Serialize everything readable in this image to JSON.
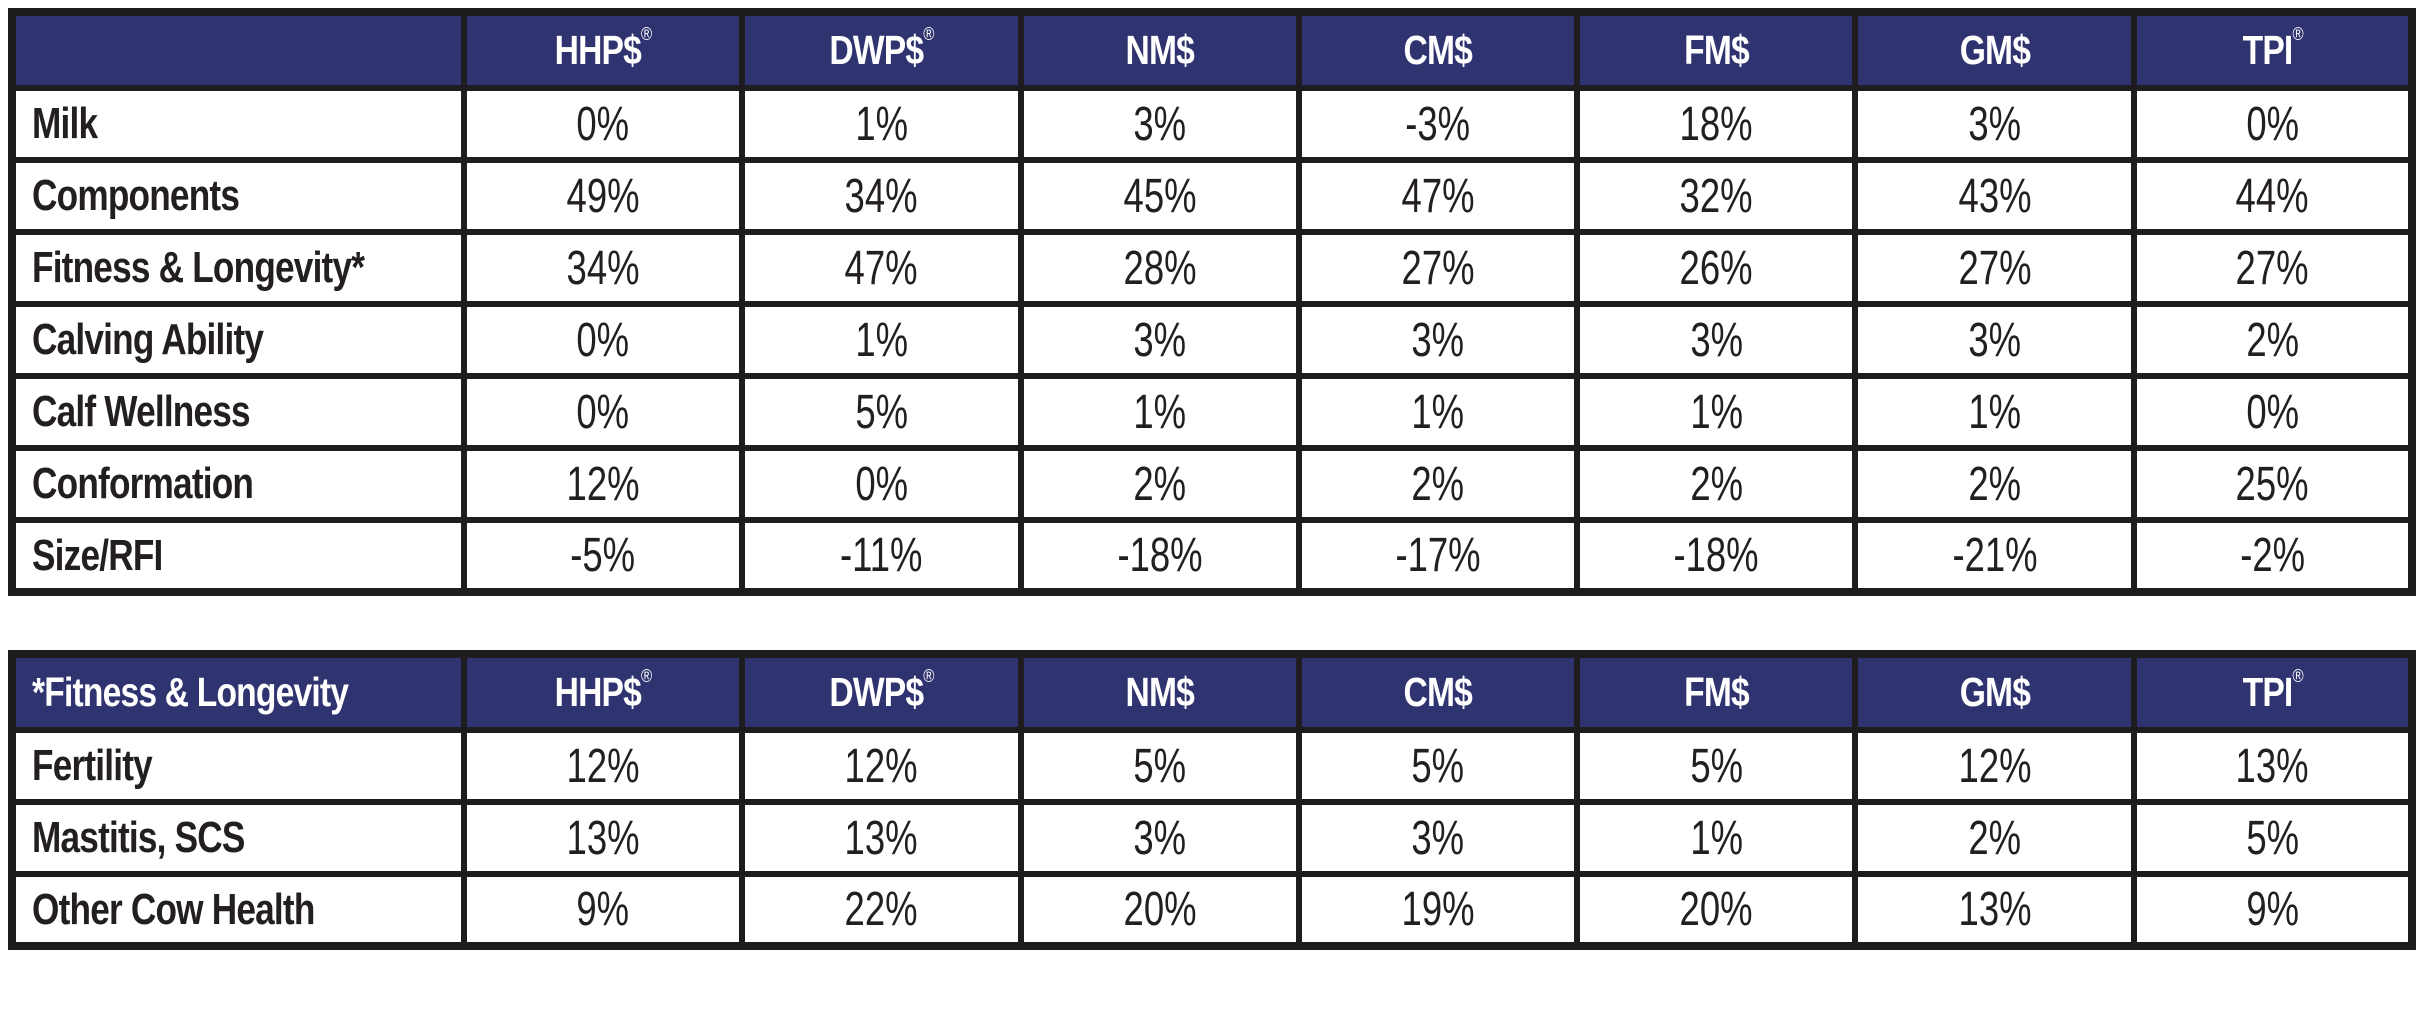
{
  "colors": {
    "header_bg": "#2f336f",
    "header_text": "#ffffff",
    "border": "#1e1c1e",
    "cell_text": "#231f20",
    "cell_bg": "#ffffff"
  },
  "columns": [
    {
      "label": "HHP$",
      "sup": "®"
    },
    {
      "label": "DWP$",
      "sup": "®"
    },
    {
      "label": "NM$",
      "sup": ""
    },
    {
      "label": "CM$",
      "sup": ""
    },
    {
      "label": "FM$",
      "sup": ""
    },
    {
      "label": "GM$",
      "sup": ""
    },
    {
      "label": "TPI",
      "sup": "®"
    }
  ],
  "table1": {
    "corner_label": "",
    "rows": [
      {
        "label": "Milk",
        "values": [
          "0%",
          "1%",
          "3%",
          "-3%",
          "18%",
          "3%",
          "0%"
        ]
      },
      {
        "label": "Components",
        "values": [
          "49%",
          "34%",
          "45%",
          "47%",
          "32%",
          "43%",
          "44%"
        ]
      },
      {
        "label": "Fitness & Longevity*",
        "values": [
          "34%",
          "47%",
          "28%",
          "27%",
          "26%",
          "27%",
          "27%"
        ]
      },
      {
        "label": "Calving Ability",
        "values": [
          "0%",
          "1%",
          "3%",
          "3%",
          "3%",
          "3%",
          "2%"
        ]
      },
      {
        "label": "Calf Wellness",
        "values": [
          "0%",
          "5%",
          "1%",
          "1%",
          "1%",
          "1%",
          "0%"
        ]
      },
      {
        "label": "Conformation",
        "values": [
          "12%",
          "0%",
          "2%",
          "2%",
          "2%",
          "2%",
          "25%"
        ]
      },
      {
        "label": "Size/RFI",
        "values": [
          "-5%",
          "-11%",
          "-18%",
          "-17%",
          "-18%",
          "-21%",
          "-2%"
        ]
      }
    ]
  },
  "table2": {
    "corner_label": "*Fitness & Longevity",
    "rows": [
      {
        "label": "Fertility",
        "values": [
          "12%",
          "12%",
          "5%",
          "5%",
          "5%",
          "12%",
          "13%"
        ]
      },
      {
        "label": "Mastitis, SCS",
        "values": [
          "13%",
          "13%",
          "3%",
          "3%",
          "1%",
          "2%",
          "5%"
        ]
      },
      {
        "label": "Other Cow Health",
        "values": [
          "9%",
          "22%",
          "20%",
          "19%",
          "20%",
          "13%",
          "9%"
        ]
      }
    ]
  },
  "chart_data": [
    {
      "type": "table",
      "columns": [
        "",
        "HHP$®",
        "DWP$®",
        "NM$",
        "CM$",
        "FM$",
        "GM$",
        "TPI®"
      ],
      "rows": [
        [
          "Milk",
          "0%",
          "1%",
          "3%",
          "-3%",
          "18%",
          "3%",
          "0%"
        ],
        [
          "Components",
          "49%",
          "34%",
          "45%",
          "47%",
          "32%",
          "43%",
          "44%"
        ],
        [
          "Fitness & Longevity*",
          "34%",
          "47%",
          "28%",
          "27%",
          "26%",
          "27%",
          "27%"
        ],
        [
          "Calving Ability",
          "0%",
          "1%",
          "3%",
          "3%",
          "3%",
          "3%",
          "2%"
        ],
        [
          "Calf Wellness",
          "0%",
          "5%",
          "1%",
          "1%",
          "1%",
          "1%",
          "0%"
        ],
        [
          "Conformation",
          "12%",
          "0%",
          "2%",
          "2%",
          "2%",
          "2%",
          "25%"
        ],
        [
          "Size/RFI",
          "-5%",
          "-11%",
          "-18%",
          "-17%",
          "-18%",
          "-21%",
          "-2%"
        ]
      ]
    },
    {
      "type": "table",
      "columns": [
        "*Fitness & Longevity",
        "HHP$®",
        "DWP$®",
        "NM$",
        "CM$",
        "FM$",
        "GM$",
        "TPI®"
      ],
      "rows": [
        [
          "Fertility",
          "12%",
          "12%",
          "5%",
          "5%",
          "5%",
          "12%",
          "13%"
        ],
        [
          "Mastitis, SCS",
          "13%",
          "13%",
          "3%",
          "3%",
          "1%",
          "2%",
          "5%"
        ],
        [
          "Other Cow Health",
          "9%",
          "22%",
          "20%",
          "19%",
          "20%",
          "13%",
          "9%"
        ]
      ]
    }
  ]
}
